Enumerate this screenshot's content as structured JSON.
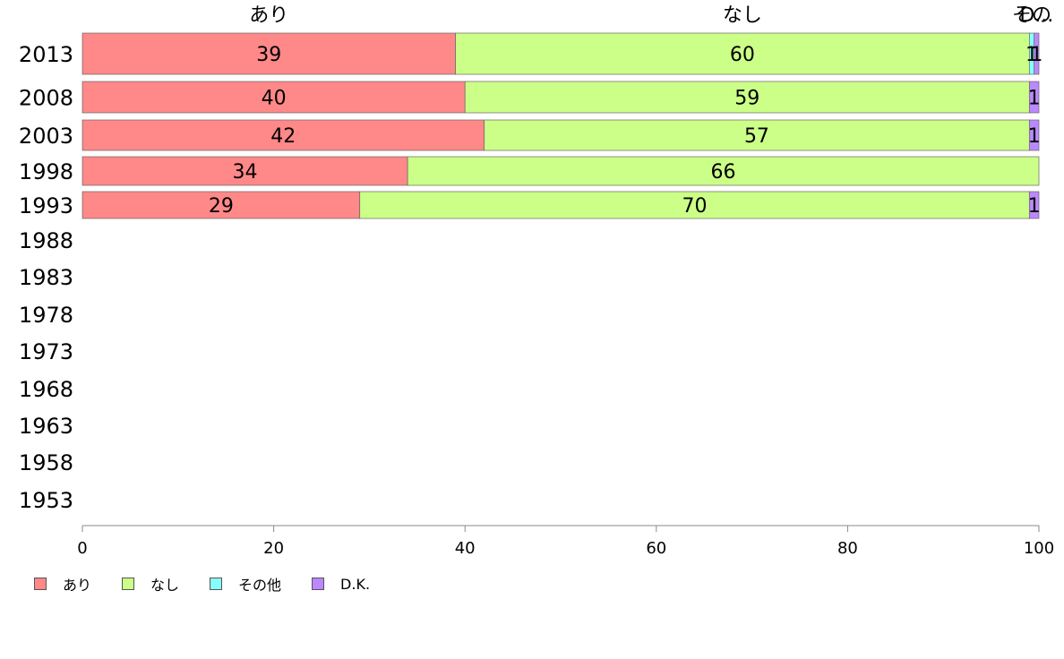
{
  "chart_data": {
    "type": "bar",
    "orientation": "horizontal",
    "stacked": true,
    "categories": [
      "2013",
      "2008",
      "2003",
      "1998",
      "1993",
      "1988",
      "1983",
      "1978",
      "1973",
      "1968",
      "1963",
      "1958",
      "1953"
    ],
    "series": [
      {
        "name": "あり",
        "color": "#ff8888",
        "values": [
          39,
          40,
          42,
          34,
          29,
          null,
          null,
          null,
          null,
          null,
          null,
          null,
          null
        ],
        "labels": [
          "39",
          "40",
          "42",
          "34",
          "29"
        ]
      },
      {
        "name": "なし",
        "color": "#ccff88",
        "values": [
          60,
          59,
          57,
          66,
          70,
          null,
          null,
          null,
          null,
          null,
          null,
          null,
          null
        ],
        "labels": [
          "60",
          "59",
          "57",
          "66",
          "70"
        ]
      },
      {
        "name": "その他",
        "color": "#88ffff",
        "values": [
          0.5,
          0,
          0,
          0,
          0,
          null,
          null,
          null,
          null,
          null,
          null,
          null,
          null
        ],
        "labels": [
          "1",
          "",
          "",
          "",
          ""
        ]
      },
      {
        "name": "D.K.",
        "color": "#bb88ff",
        "values": [
          0.5,
          1,
          1,
          0,
          1,
          null,
          null,
          null,
          null,
          null,
          null,
          null,
          null
        ],
        "labels": [
          "1",
          "1",
          "1",
          "",
          "1"
        ]
      }
    ],
    "top_labels": [
      "あり",
      "なし",
      "その他",
      "D.K."
    ],
    "top_labels_shown": [
      "あり",
      "なし",
      "その",
      "D..."
    ],
    "xlim": [
      0,
      100
    ],
    "xticks": [
      0,
      20,
      40,
      60,
      80,
      100
    ],
    "legend": {
      "position": "bottom-left",
      "items": [
        "あり",
        "なし",
        "その他",
        "D.K."
      ]
    }
  }
}
